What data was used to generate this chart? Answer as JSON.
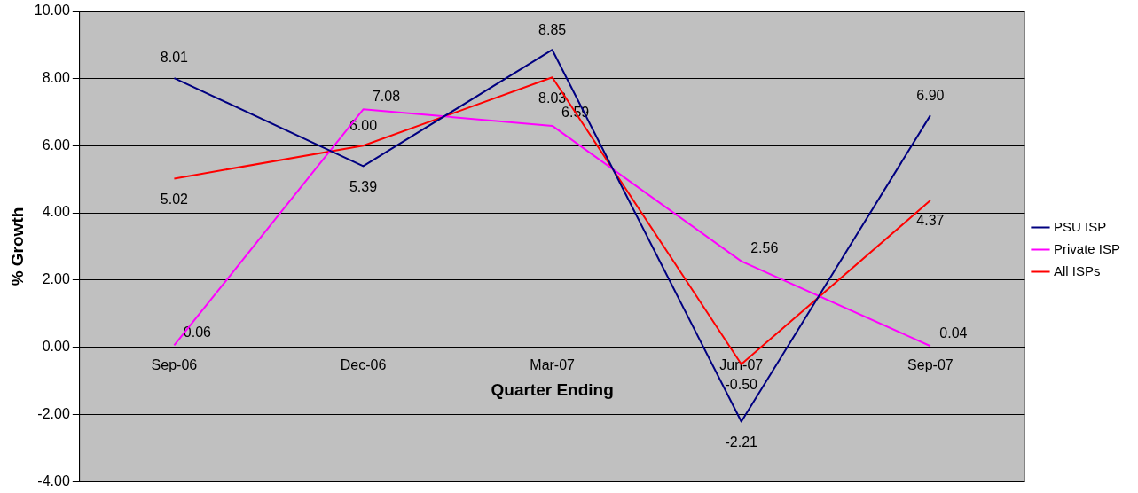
{
  "chart_data": {
    "type": "line",
    "xlabel": "Quarter Ending",
    "ylabel": "% Growth",
    "categories": [
      "Sep-06",
      "Dec-06",
      "Mar-07",
      "Jun-07",
      "Sep-07"
    ],
    "series": [
      {
        "name": "PSU ISP",
        "color": "#000080",
        "values": [
          8.01,
          5.39,
          8.85,
          -2.21,
          6.9
        ],
        "value_labels": [
          "8.01",
          "5.39",
          "8.85",
          "-2.21",
          "6.90"
        ]
      },
      {
        "name": "Private ISP",
        "color": "#ff00ff",
        "values": [
          0.06,
          7.08,
          6.59,
          2.56,
          0.04
        ],
        "value_labels": [
          "0.06",
          "7.08",
          "6.59",
          "2.56",
          "0.04"
        ]
      },
      {
        "name": "All ISPs",
        "color": "#ff0000",
        "values": [
          5.02,
          6.0,
          8.03,
          -0.5,
          4.37
        ],
        "value_labels": [
          "5.02",
          "6.00",
          "8.03",
          "-0.50",
          "4.37"
        ]
      }
    ],
    "ylim": [
      -4,
      10
    ],
    "yticks": [
      {
        "value": -4,
        "label": "-4.00"
      },
      {
        "value": -2,
        "label": "-2.00"
      },
      {
        "value": 0,
        "label": "0.00"
      },
      {
        "value": 2,
        "label": "2.00"
      },
      {
        "value": 4,
        "label": "4.00"
      },
      {
        "value": 6,
        "label": "6.00"
      },
      {
        "value": 8,
        "label": "8.00"
      },
      {
        "value": 10,
        "label": "10.00"
      }
    ],
    "grid": "y",
    "legend": "right",
    "marker": "none",
    "line_style": "solid"
  }
}
